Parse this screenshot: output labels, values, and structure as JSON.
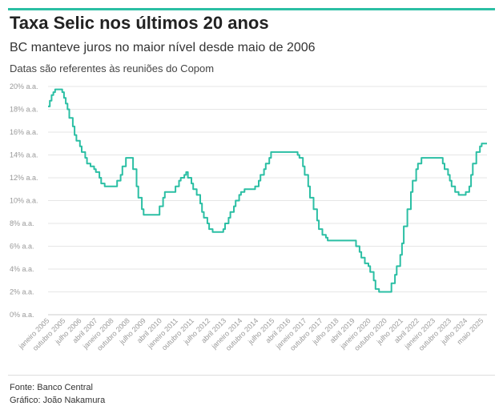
{
  "header": {
    "title": "Taxa Selic nos últimos 20 anos",
    "subtitle": "BC manteve juros no maior nível desde maio de 2006",
    "note": "Datas são referentes às reuniões do Copom"
  },
  "footer": {
    "source": "Fonte: Banco Central",
    "credit": "Gráfico: João Nakamura"
  },
  "colors": {
    "accent": "#2bbfa4",
    "line": "#2bbfa4",
    "grid": "#e6e6e6",
    "tick_text": "#999999"
  },
  "chart_data": {
    "type": "line",
    "title": "Taxa Selic nos últimos 20 anos",
    "xlabel": "",
    "ylabel": "",
    "grid": true,
    "ylim": [
      0,
      20
    ],
    "y_ticks": [
      0,
      2,
      4,
      6,
      8,
      10,
      12,
      14,
      16,
      18,
      20
    ],
    "y_tick_labels": [
      "0% a.a.",
      "2% a.a.",
      "4% a.a.",
      "6% a.a.",
      "8% a.a.",
      "10% a.a.",
      "12% a.a.",
      "14% a.a.",
      "16% a.a.",
      "18% a.a.",
      "20% a.a."
    ],
    "x_tick_labels": [
      "janeiro 2005",
      "outubro 2005",
      "julho 2006",
      "abril 2007",
      "janeiro 2008",
      "outubro 2008",
      "julho 2009",
      "abril 2010",
      "janeiro 2011",
      "outubro 2011",
      "julho 2012",
      "abril 2013",
      "janeiro 2014",
      "outubro 2014",
      "julho 2015",
      "abril 2016",
      "janeiro 2017",
      "outubro 2017",
      "julho 2018",
      "abril 2019",
      "janeiro 2020",
      "outubro 2020",
      "julho 2021",
      "abril 2022",
      "janeiro 2023",
      "outubro 2023",
      "julho 2024",
      "maio 2025"
    ],
    "series": [
      {
        "step": true,
        "points": [
          [
            "2005-01",
            18.25
          ],
          [
            "2005-02",
            18.75
          ],
          [
            "2005-03",
            19.25
          ],
          [
            "2005-04",
            19.5
          ],
          [
            "2005-05",
            19.75
          ],
          [
            "2005-09",
            19.5
          ],
          [
            "2005-10",
            19.0
          ],
          [
            "2005-11",
            18.5
          ],
          [
            "2005-12",
            18.0
          ],
          [
            "2006-01",
            17.25
          ],
          [
            "2006-03",
            16.5
          ],
          [
            "2006-04",
            15.75
          ],
          [
            "2006-05",
            15.25
          ],
          [
            "2006-07",
            14.75
          ],
          [
            "2006-08",
            14.25
          ],
          [
            "2006-10",
            13.75
          ],
          [
            "2006-11",
            13.25
          ],
          [
            "2007-01",
            13.0
          ],
          [
            "2007-03",
            12.75
          ],
          [
            "2007-04",
            12.5
          ],
          [
            "2007-06",
            12.0
          ],
          [
            "2007-07",
            11.5
          ],
          [
            "2007-09",
            11.25
          ],
          [
            "2008-04",
            11.75
          ],
          [
            "2008-06",
            12.25
          ],
          [
            "2008-07",
            13.0
          ],
          [
            "2008-09",
            13.75
          ],
          [
            "2009-01",
            12.75
          ],
          [
            "2009-03",
            11.25
          ],
          [
            "2009-04",
            10.25
          ],
          [
            "2009-06",
            9.25
          ],
          [
            "2009-07",
            8.75
          ],
          [
            "2010-04",
            9.5
          ],
          [
            "2010-06",
            10.25
          ],
          [
            "2010-07",
            10.75
          ],
          [
            "2011-01",
            11.25
          ],
          [
            "2011-03",
            11.75
          ],
          [
            "2011-04",
            12.0
          ],
          [
            "2011-06",
            12.25
          ],
          [
            "2011-07",
            12.5
          ],
          [
            "2011-08",
            12.0
          ],
          [
            "2011-10",
            11.5
          ],
          [
            "2011-11",
            11.0
          ],
          [
            "2012-01",
            10.5
          ],
          [
            "2012-03",
            9.75
          ],
          [
            "2012-04",
            9.0
          ],
          [
            "2012-05",
            8.5
          ],
          [
            "2012-07",
            8.0
          ],
          [
            "2012-08",
            7.5
          ],
          [
            "2012-10",
            7.25
          ],
          [
            "2013-04",
            7.5
          ],
          [
            "2013-05",
            8.0
          ],
          [
            "2013-07",
            8.5
          ],
          [
            "2013-08",
            9.0
          ],
          [
            "2013-10",
            9.5
          ],
          [
            "2013-11",
            10.0
          ],
          [
            "2014-01",
            10.5
          ],
          [
            "2014-02",
            10.75
          ],
          [
            "2014-04",
            11.0
          ],
          [
            "2014-10",
            11.25
          ],
          [
            "2014-12",
            11.75
          ],
          [
            "2015-01",
            12.25
          ],
          [
            "2015-03",
            12.75
          ],
          [
            "2015-04",
            13.25
          ],
          [
            "2015-06",
            13.75
          ],
          [
            "2015-07",
            14.25
          ],
          [
            "2016-10",
            14.0
          ],
          [
            "2016-11",
            13.75
          ],
          [
            "2017-01",
            13.0
          ],
          [
            "2017-02",
            12.25
          ],
          [
            "2017-04",
            11.25
          ],
          [
            "2017-05",
            10.25
          ],
          [
            "2017-07",
            9.25
          ],
          [
            "2017-09",
            8.25
          ],
          [
            "2017-10",
            7.5
          ],
          [
            "2017-12",
            7.0
          ],
          [
            "2018-02",
            6.75
          ],
          [
            "2018-03",
            6.5
          ],
          [
            "2019-07",
            6.0
          ],
          [
            "2019-09",
            5.5
          ],
          [
            "2019-10",
            5.0
          ],
          [
            "2019-12",
            4.5
          ],
          [
            "2020-02",
            4.25
          ],
          [
            "2020-03",
            3.75
          ],
          [
            "2020-05",
            3.0
          ],
          [
            "2020-06",
            2.25
          ],
          [
            "2020-08",
            2.0
          ],
          [
            "2021-03",
            2.75
          ],
          [
            "2021-05",
            3.5
          ],
          [
            "2021-06",
            4.25
          ],
          [
            "2021-08",
            5.25
          ],
          [
            "2021-09",
            6.25
          ],
          [
            "2021-10",
            7.75
          ],
          [
            "2021-12",
            9.25
          ],
          [
            "2022-02",
            10.75
          ],
          [
            "2022-03",
            11.75
          ],
          [
            "2022-05",
            12.75
          ],
          [
            "2022-06",
            13.25
          ],
          [
            "2022-08",
            13.75
          ],
          [
            "2023-08",
            13.25
          ],
          [
            "2023-09",
            12.75
          ],
          [
            "2023-11",
            12.25
          ],
          [
            "2023-12",
            11.75
          ],
          [
            "2024-01",
            11.25
          ],
          [
            "2024-03",
            10.75
          ],
          [
            "2024-05",
            10.5
          ],
          [
            "2024-09",
            10.75
          ],
          [
            "2024-11",
            11.25
          ],
          [
            "2024-12",
            12.25
          ],
          [
            "2025-01",
            13.25
          ],
          [
            "2025-03",
            14.25
          ],
          [
            "2025-05",
            14.75
          ],
          [
            "2025-06",
            15.0
          ],
          [
            "2025-09",
            15.0
          ]
        ]
      }
    ]
  }
}
